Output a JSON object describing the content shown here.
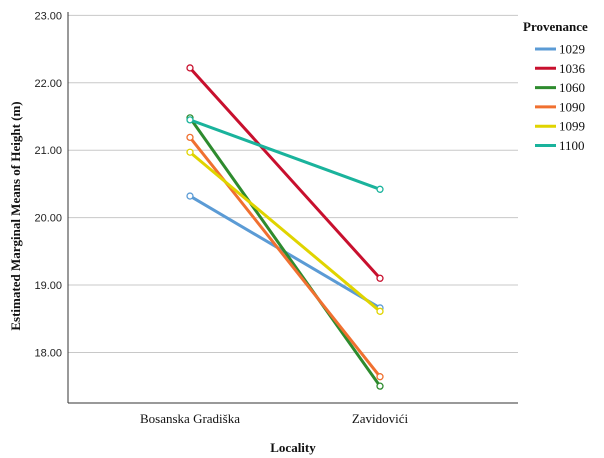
{
  "chart_data": {
    "type": "line",
    "xlabel": "Locality",
    "ylabel": "Estimated Marginal Means of Height (m)",
    "categories": [
      "Bosanska Gradiška",
      "Zavidovići"
    ],
    "ylim": [
      17.25,
      23.05
    ],
    "yticks": [
      "18.00",
      "19.00",
      "20.00",
      "21.00",
      "22.00",
      "23.00"
    ],
    "grid": true,
    "legend": {
      "title": "Provenance",
      "placement": "right"
    },
    "series": [
      {
        "name": "1029",
        "color": "#5b9bd5",
        "values": [
          20.32,
          18.66
        ]
      },
      {
        "name": "1036",
        "color": "#c8102e",
        "values": [
          22.22,
          19.1
        ]
      },
      {
        "name": "1060",
        "color": "#2e8b2e",
        "values": [
          21.48,
          17.5
        ]
      },
      {
        "name": "1090",
        "color": "#f07030",
        "values": [
          21.19,
          17.64
        ]
      },
      {
        "name": "1099",
        "color": "#e0d400",
        "values": [
          20.97,
          18.61
        ]
      },
      {
        "name": "1100",
        "color": "#1ab39c",
        "values": [
          21.45,
          20.42
        ]
      }
    ]
  }
}
